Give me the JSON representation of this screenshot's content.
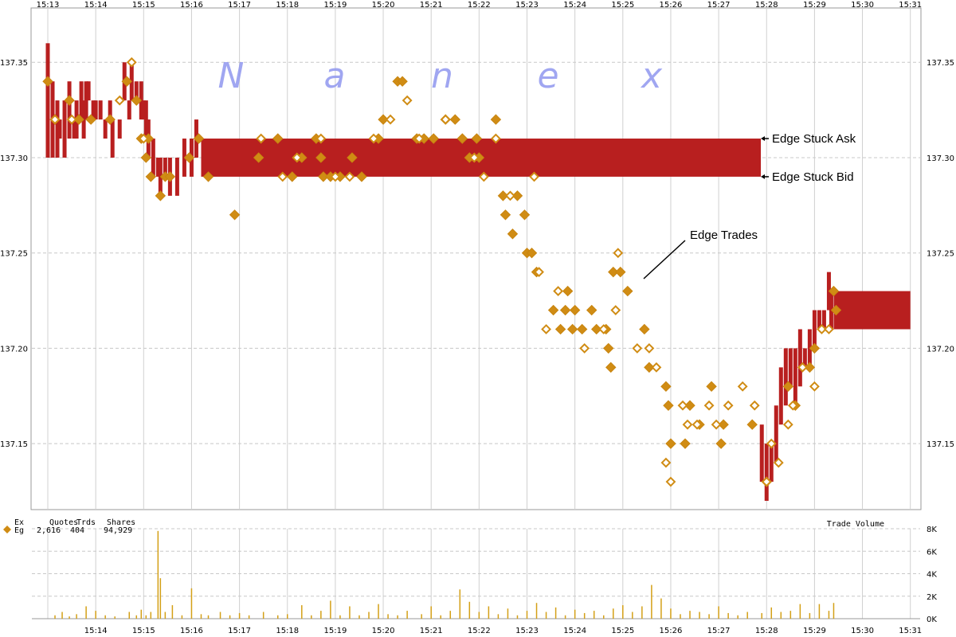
{
  "chart_data": {
    "type": "scatter",
    "watermark": [
      "N",
      "a",
      "n",
      "e",
      "x"
    ],
    "x_ticks": [
      "15:13",
      "15:14",
      "15:15",
      "15:16",
      "15:17",
      "15:18",
      "15:19",
      "15:20",
      "15:21",
      "15:22",
      "15:23",
      "15:24",
      "15:25",
      "15:26",
      "15:27",
      "15:28",
      "15:29",
      "15:30",
      "15:31"
    ],
    "x_ticks_bottom": [
      "15:14",
      "15:15",
      "15:16",
      "15:17",
      "15:18",
      "15:19",
      "15:20",
      "15:21",
      "15:22",
      "15:23",
      "15:24",
      "15:25",
      "15:26",
      "15:27",
      "15:28",
      "15:29",
      "15:30",
      "15:31"
    ],
    "y_ticks": [
      137.15,
      137.2,
      137.25,
      137.3,
      137.35
    ],
    "y_tick_labels": [
      "137.15",
      "137.20",
      "137.25",
      "137.30",
      "137.35"
    ],
    "ylim": [
      137.1154,
      137.3785
    ],
    "xlim": [
      "15:13",
      "15:31"
    ],
    "grid": true,
    "volume_label": "Trade Volume",
    "volume_ticks": [
      0,
      2000,
      4000,
      6000,
      8000
    ],
    "volume_tick_labels": [
      "0K",
      "2K",
      "4K",
      "6K",
      "8K"
    ],
    "stats": {
      "headers": [
        "Ex",
        "Quotes",
        "Trds",
        "Shares"
      ],
      "row": [
        "Eg",
        "2,616",
        "404",
        "94,929"
      ]
    },
    "annotations": [
      {
        "text": "Edge Stuck Ask",
        "time": "15:27.88",
        "price": 137.31
      },
      {
        "text": "Edge Stuck Bid",
        "time": "15:27.88",
        "price": 137.29
      },
      {
        "text": "Edge Trades",
        "time": "15:25.4",
        "price": 137.23
      }
    ],
    "quote_bands": [
      {
        "t0": 16.2,
        "t1": 27.88,
        "bid": 137.29,
        "ask": 137.31
      },
      {
        "t0": 29.4,
        "t1": 31.0,
        "bid": 137.21,
        "ask": 137.23
      }
    ],
    "quote_bars": [
      [
        13.0,
        137.3,
        137.36
      ],
      [
        13.1,
        137.3,
        137.34
      ],
      [
        13.2,
        137.3,
        137.33
      ],
      [
        13.25,
        137.31,
        137.32
      ],
      [
        13.35,
        137.3,
        137.33
      ],
      [
        13.45,
        137.31,
        137.34
      ],
      [
        13.55,
        137.31,
        137.32
      ],
      [
        13.6,
        137.31,
        137.33
      ],
      [
        13.7,
        137.32,
        137.34
      ],
      [
        13.75,
        137.31,
        137.33
      ],
      [
        13.8,
        137.32,
        137.34
      ],
      [
        13.85,
        137.33,
        137.34
      ],
      [
        13.95,
        137.32,
        137.33
      ],
      [
        14.0,
        137.32,
        137.33
      ],
      [
        14.1,
        137.32,
        137.33
      ],
      [
        14.2,
        137.31,
        137.32
      ],
      [
        14.3,
        137.32,
        137.33
      ],
      [
        14.35,
        137.3,
        137.32
      ],
      [
        14.5,
        137.31,
        137.32
      ],
      [
        14.6,
        137.33,
        137.35
      ],
      [
        14.7,
        137.32,
        137.33
      ],
      [
        14.75,
        137.33,
        137.35
      ],
      [
        14.85,
        137.33,
        137.34
      ],
      [
        14.95,
        137.32,
        137.34
      ],
      [
        15.0,
        137.32,
        137.33
      ],
      [
        15.05,
        137.31,
        137.33
      ],
      [
        15.1,
        137.3,
        137.32
      ],
      [
        15.2,
        137.29,
        137.31
      ],
      [
        15.3,
        137.29,
        137.3
      ],
      [
        15.35,
        137.28,
        137.3
      ],
      [
        15.45,
        137.29,
        137.3
      ],
      [
        15.55,
        137.28,
        137.3
      ],
      [
        15.7,
        137.28,
        137.3
      ],
      [
        15.85,
        137.29,
        137.31
      ],
      [
        16.0,
        137.29,
        137.31
      ],
      [
        16.1,
        137.3,
        137.32
      ],
      [
        27.9,
        137.13,
        137.16
      ],
      [
        28.0,
        137.12,
        137.15
      ],
      [
        28.1,
        137.13,
        137.15
      ],
      [
        28.2,
        137.14,
        137.17
      ],
      [
        28.3,
        137.16,
        137.19
      ],
      [
        28.4,
        137.17,
        137.2
      ],
      [
        28.5,
        137.18,
        137.2
      ],
      [
        28.6,
        137.17,
        137.2
      ],
      [
        28.7,
        137.18,
        137.21
      ],
      [
        28.8,
        137.19,
        137.2
      ],
      [
        28.9,
        137.19,
        137.21
      ],
      [
        29.0,
        137.2,
        137.22
      ],
      [
        29.1,
        137.21,
        137.22
      ],
      [
        29.2,
        137.21,
        137.22
      ],
      [
        29.3,
        137.22,
        137.24
      ],
      [
        29.35,
        137.21,
        137.23
      ]
    ],
    "trades_filled": [
      [
        13.0,
        137.34
      ],
      [
        13.15,
        137.32
      ],
      [
        13.45,
        137.33
      ],
      [
        13.65,
        137.32
      ],
      [
        13.9,
        137.32
      ],
      [
        14.3,
        137.32
      ],
      [
        14.65,
        137.34
      ],
      [
        14.85,
        137.33
      ],
      [
        14.95,
        137.31
      ],
      [
        15.05,
        137.3
      ],
      [
        15.1,
        137.31
      ],
      [
        15.15,
        137.29
      ],
      [
        15.35,
        137.28
      ],
      [
        15.45,
        137.29
      ],
      [
        15.55,
        137.29
      ],
      [
        15.95,
        137.3
      ],
      [
        16.15,
        137.31
      ],
      [
        16.35,
        137.29
      ],
      [
        16.9,
        137.27
      ],
      [
        17.4,
        137.3
      ],
      [
        17.8,
        137.31
      ],
      [
        18.1,
        137.29
      ],
      [
        18.3,
        137.3
      ],
      [
        18.6,
        137.31
      ],
      [
        18.7,
        137.3
      ],
      [
        18.75,
        137.29
      ],
      [
        18.9,
        137.29
      ],
      [
        19.1,
        137.29
      ],
      [
        19.35,
        137.3
      ],
      [
        19.55,
        137.29
      ],
      [
        19.9,
        137.31
      ],
      [
        20.0,
        137.32
      ],
      [
        20.3,
        137.34
      ],
      [
        20.4,
        137.34
      ],
      [
        20.7,
        137.31
      ],
      [
        20.85,
        137.31
      ],
      [
        21.05,
        137.31
      ],
      [
        21.3,
        137.32
      ],
      [
        21.5,
        137.32
      ],
      [
        21.65,
        137.31
      ],
      [
        21.8,
        137.3
      ],
      [
        21.95,
        137.31
      ],
      [
        22.0,
        137.3
      ],
      [
        22.35,
        137.32
      ],
      [
        22.5,
        137.28
      ],
      [
        22.55,
        137.27
      ],
      [
        22.7,
        137.26
      ],
      [
        22.8,
        137.28
      ],
      [
        22.95,
        137.27
      ],
      [
        23.0,
        137.25
      ],
      [
        23.1,
        137.25
      ],
      [
        23.2,
        137.24
      ],
      [
        23.55,
        137.22
      ],
      [
        23.7,
        137.21
      ],
      [
        23.8,
        137.22
      ],
      [
        23.85,
        137.23
      ],
      [
        23.95,
        137.21
      ],
      [
        24.0,
        137.22
      ],
      [
        24.15,
        137.21
      ],
      [
        24.35,
        137.22
      ],
      [
        24.45,
        137.21
      ],
      [
        24.65,
        137.21
      ],
      [
        24.7,
        137.2
      ],
      [
        24.75,
        137.19
      ],
      [
        24.8,
        137.24
      ],
      [
        24.95,
        137.24
      ],
      [
        25.1,
        137.23
      ],
      [
        25.45,
        137.21
      ],
      [
        25.55,
        137.19
      ],
      [
        25.9,
        137.18
      ],
      [
        25.95,
        137.17
      ],
      [
        26.0,
        137.15
      ],
      [
        26.3,
        137.15
      ],
      [
        26.4,
        137.17
      ],
      [
        26.6,
        137.16
      ],
      [
        26.85,
        137.18
      ],
      [
        27.05,
        137.15
      ],
      [
        27.1,
        137.16
      ],
      [
        27.7,
        137.16
      ],
      [
        28.0,
        137.13
      ],
      [
        28.45,
        137.18
      ],
      [
        28.6,
        137.17
      ],
      [
        28.9,
        137.19
      ],
      [
        29.0,
        137.2
      ],
      [
        29.4,
        137.23
      ],
      [
        29.45,
        137.22
      ]
    ],
    "trades_hollow": [
      [
        13.15,
        137.32
      ],
      [
        13.5,
        137.32
      ],
      [
        14.5,
        137.33
      ],
      [
        14.75,
        137.35
      ],
      [
        15.0,
        137.31
      ],
      [
        17.45,
        137.31
      ],
      [
        17.9,
        137.29
      ],
      [
        18.2,
        137.3
      ],
      [
        18.7,
        137.31
      ],
      [
        19.0,
        137.29
      ],
      [
        19.3,
        137.29
      ],
      [
        19.8,
        137.31
      ],
      [
        20.15,
        137.32
      ],
      [
        20.5,
        137.33
      ],
      [
        20.75,
        137.31
      ],
      [
        21.3,
        137.32
      ],
      [
        21.9,
        137.3
      ],
      [
        22.1,
        137.29
      ],
      [
        22.35,
        137.31
      ],
      [
        22.65,
        137.28
      ],
      [
        23.15,
        137.29
      ],
      [
        23.25,
        137.24
      ],
      [
        23.4,
        137.21
      ],
      [
        23.65,
        137.23
      ],
      [
        24.2,
        137.2
      ],
      [
        24.6,
        137.21
      ],
      [
        24.85,
        137.22
      ],
      [
        24.9,
        137.25
      ],
      [
        25.3,
        137.2
      ],
      [
        25.55,
        137.2
      ],
      [
        25.7,
        137.19
      ],
      [
        25.9,
        137.14
      ],
      [
        26.0,
        137.13
      ],
      [
        26.25,
        137.17
      ],
      [
        26.35,
        137.16
      ],
      [
        26.55,
        137.16
      ],
      [
        26.8,
        137.17
      ],
      [
        26.95,
        137.16
      ],
      [
        27.2,
        137.17
      ],
      [
        27.5,
        137.18
      ],
      [
        27.75,
        137.17
      ],
      [
        28.0,
        137.13
      ],
      [
        28.1,
        137.15
      ],
      [
        28.25,
        137.14
      ],
      [
        28.45,
        137.16
      ],
      [
        28.55,
        137.17
      ],
      [
        28.75,
        137.19
      ],
      [
        29.0,
        137.18
      ],
      [
        29.15,
        137.21
      ],
      [
        29.3,
        137.21
      ]
    ],
    "volume_bars": [
      [
        13.15,
        300
      ],
      [
        13.3,
        600
      ],
      [
        13.45,
        200
      ],
      [
        13.6,
        400
      ],
      [
        13.8,
        1100
      ],
      [
        14.0,
        700
      ],
      [
        14.2,
        300
      ],
      [
        14.4,
        200
      ],
      [
        14.7,
        600
      ],
      [
        14.85,
        300
      ],
      [
        14.95,
        800
      ],
      [
        15.05,
        300
      ],
      [
        15.15,
        600
      ],
      [
        15.3,
        7800
      ],
      [
        15.35,
        3600
      ],
      [
        15.45,
        600
      ],
      [
        15.6,
        1200
      ],
      [
        15.8,
        300
      ],
      [
        16.0,
        2700
      ],
      [
        16.2,
        400
      ],
      [
        16.35,
        300
      ],
      [
        16.6,
        600
      ],
      [
        16.8,
        300
      ],
      [
        17.0,
        500
      ],
      [
        17.2,
        300
      ],
      [
        17.5,
        600
      ],
      [
        17.8,
        300
      ],
      [
        18.0,
        400
      ],
      [
        18.3,
        1200
      ],
      [
        18.5,
        300
      ],
      [
        18.7,
        700
      ],
      [
        18.9,
        1600
      ],
      [
        19.1,
        300
      ],
      [
        19.3,
        1100
      ],
      [
        19.5,
        300
      ],
      [
        19.7,
        600
      ],
      [
        19.9,
        1300
      ],
      [
        20.1,
        400
      ],
      [
        20.3,
        300
      ],
      [
        20.5,
        700
      ],
      [
        20.8,
        400
      ],
      [
        21.0,
        1100
      ],
      [
        21.2,
        300
      ],
      [
        21.4,
        700
      ],
      [
        21.6,
        2600
      ],
      [
        21.8,
        1500
      ],
      [
        22.0,
        600
      ],
      [
        22.2,
        1100
      ],
      [
        22.4,
        400
      ],
      [
        22.6,
        900
      ],
      [
        22.8,
        300
      ],
      [
        23.0,
        700
      ],
      [
        23.2,
        1400
      ],
      [
        23.4,
        600
      ],
      [
        23.6,
        1000
      ],
      [
        23.8,
        300
      ],
      [
        24.0,
        800
      ],
      [
        24.2,
        500
      ],
      [
        24.4,
        700
      ],
      [
        24.6,
        300
      ],
      [
        24.8,
        900
      ],
      [
        25.0,
        1200
      ],
      [
        25.2,
        600
      ],
      [
        25.4,
        1100
      ],
      [
        25.6,
        3000
      ],
      [
        25.8,
        1800
      ],
      [
        26.0,
        900
      ],
      [
        26.2,
        400
      ],
      [
        26.4,
        700
      ],
      [
        26.6,
        600
      ],
      [
        26.8,
        400
      ],
      [
        27.0,
        1100
      ],
      [
        27.2,
        500
      ],
      [
        27.4,
        300
      ],
      [
        27.6,
        600
      ],
      [
        27.9,
        500
      ],
      [
        28.1,
        1000
      ],
      [
        28.3,
        600
      ],
      [
        28.5,
        700
      ],
      [
        28.7,
        1300
      ],
      [
        28.9,
        500
      ],
      [
        29.1,
        1300
      ],
      [
        29.3,
        700
      ],
      [
        29.4,
        1400
      ]
    ]
  }
}
